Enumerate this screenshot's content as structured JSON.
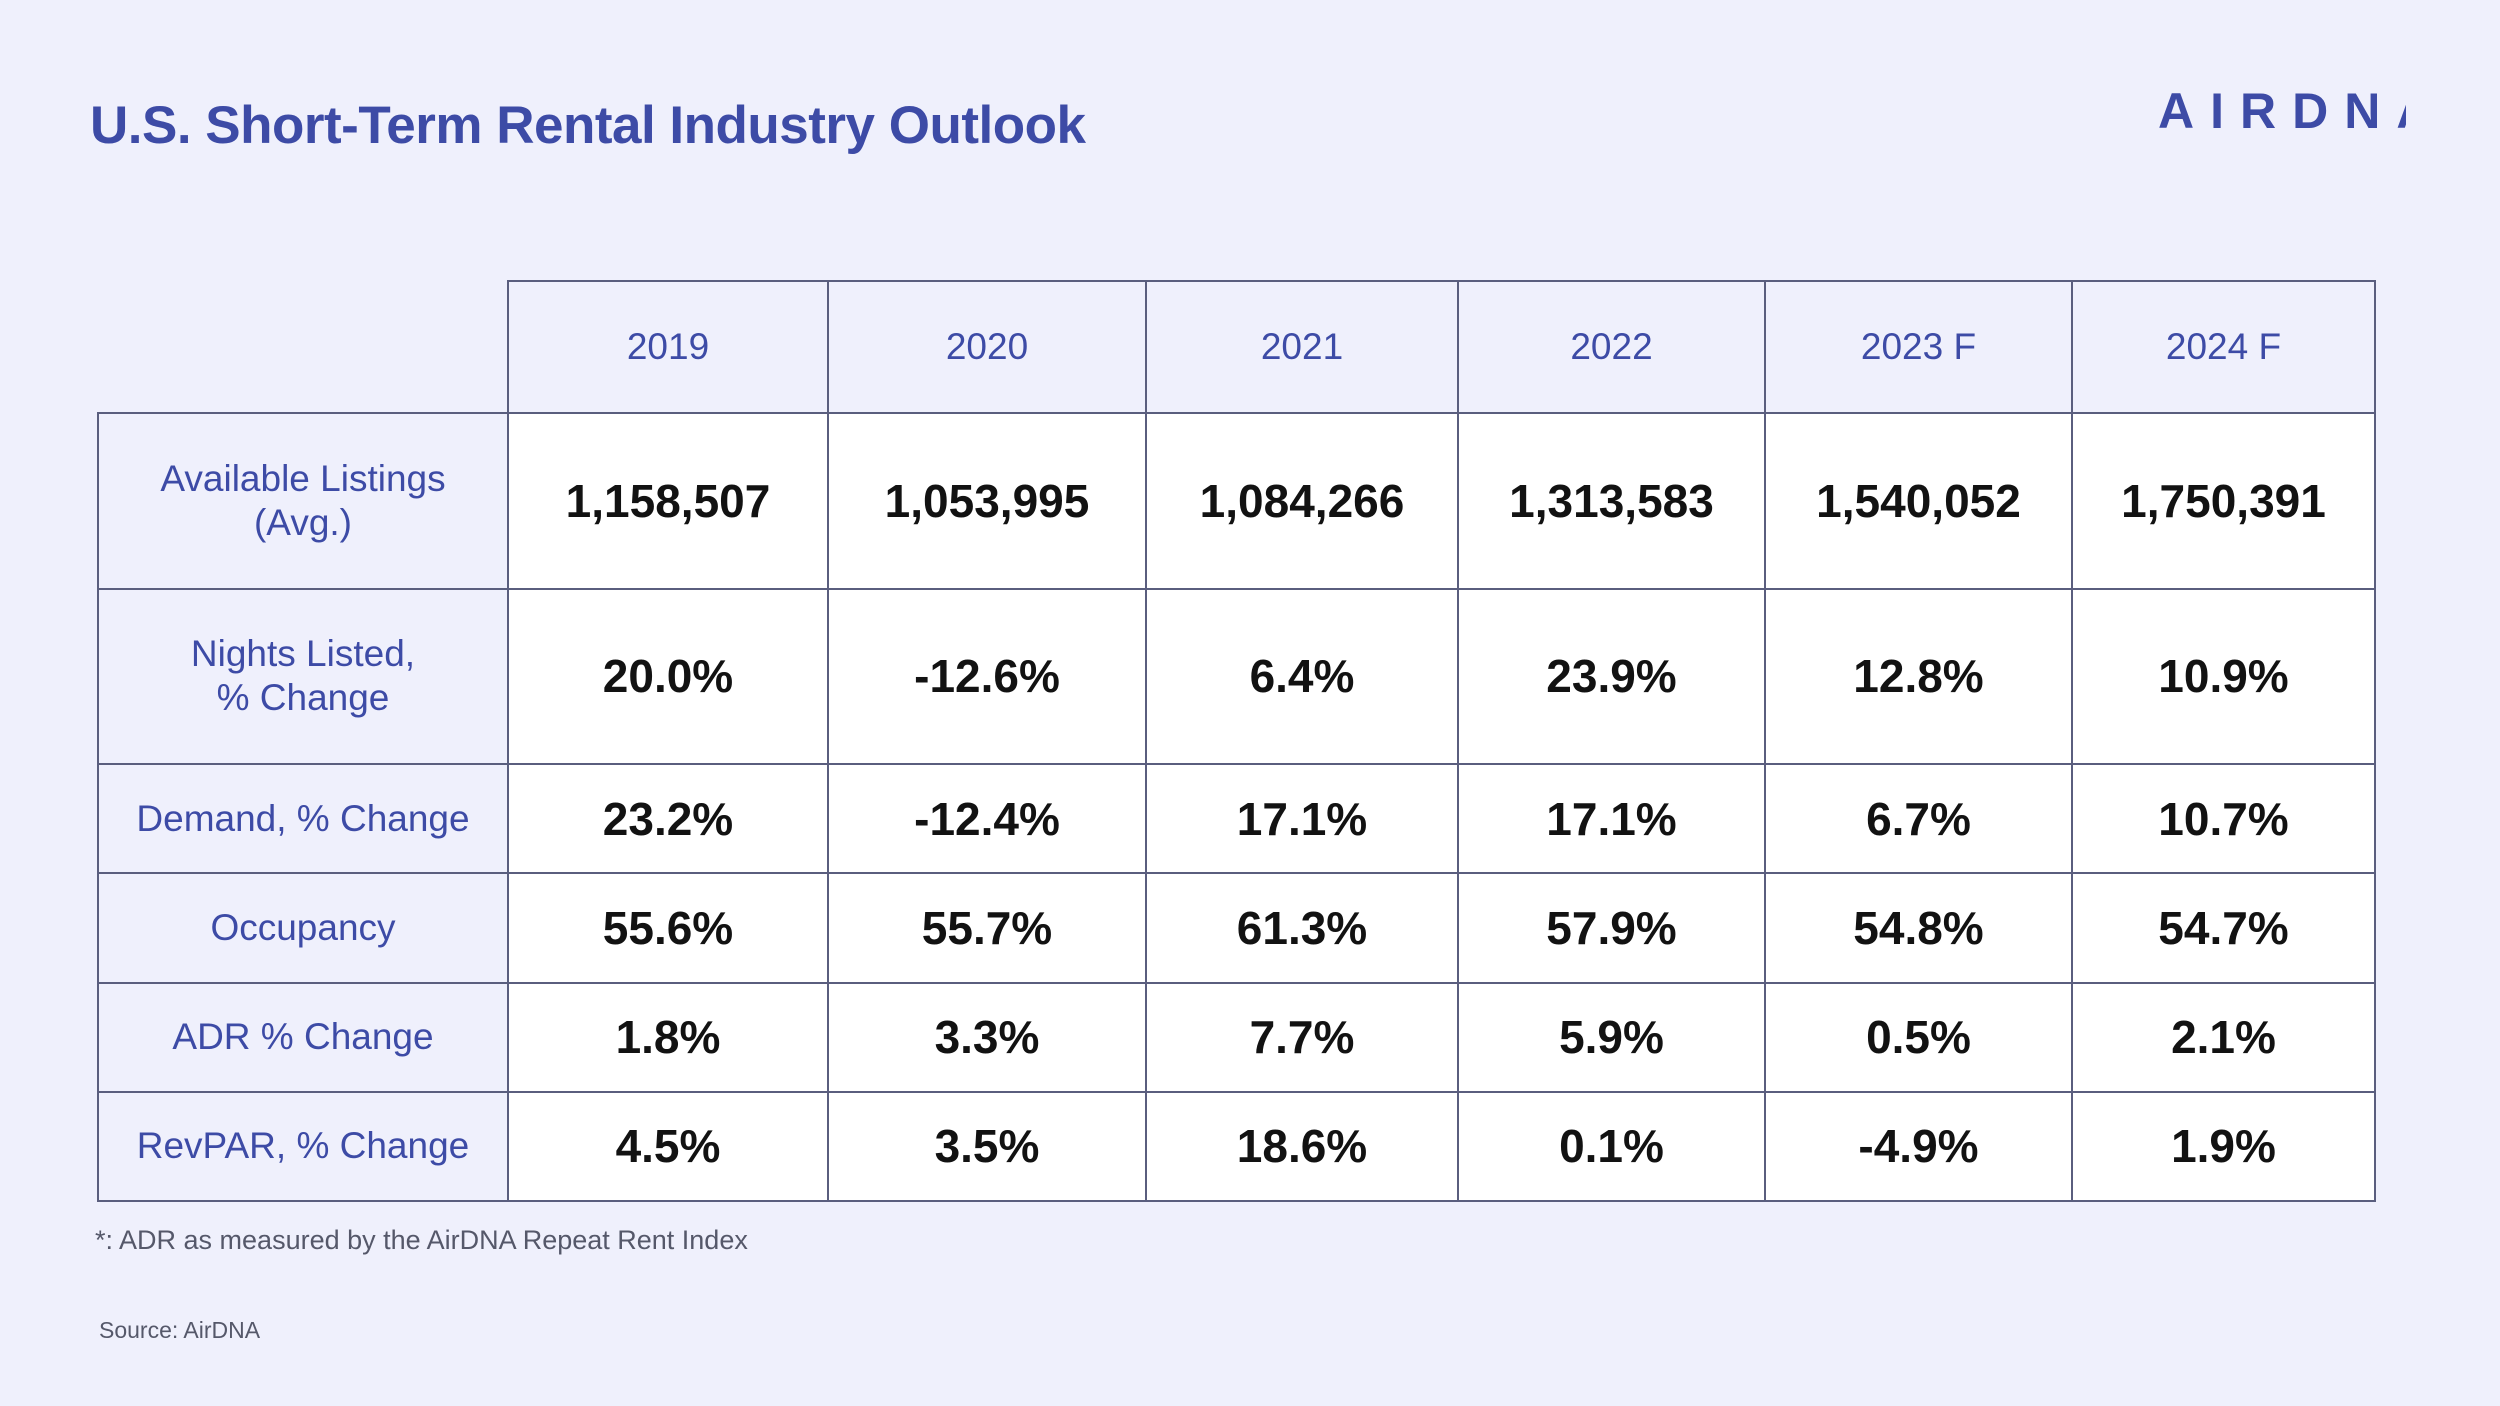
{
  "header": {
    "title": "U.S. Short-Term Rental Industry Outlook",
    "logo_text": "AIRDNA"
  },
  "colors": {
    "background": "#eff0fc",
    "accent": "#3d4ba6",
    "cell_background": "#ffffff",
    "value_text": "#121212",
    "border": "#5a5e7e"
  },
  "chart_data": {
    "type": "table",
    "columns": [
      "2019",
      "2020",
      "2021",
      "2022",
      "2023 F",
      "2024 F"
    ],
    "rows": [
      {
        "label": "Available Listings (Avg.)",
        "values": [
          "1,158,507",
          "1,053,995",
          "1,084,266",
          "1,313,583",
          "1,540,052",
          "1,750,391"
        ]
      },
      {
        "label": "Nights Listed, % Change",
        "values": [
          "20.0%",
          "-12.6%",
          "6.4%",
          "23.9%",
          "12.8%",
          "10.9%"
        ]
      },
      {
        "label": "Demand, % Change",
        "values": [
          "23.2%",
          "-12.4%",
          "17.1%",
          "17.1%",
          "6.7%",
          "10.7%"
        ]
      },
      {
        "label": "Occupancy",
        "values": [
          "55.6%",
          "55.7%",
          "61.3%",
          "57.9%",
          "54.8%",
          "54.7%"
        ]
      },
      {
        "label": "ADR % Change",
        "values": [
          "1.8%",
          "3.3%",
          "7.7%",
          "5.9%",
          "0.5%",
          "2.1%"
        ]
      },
      {
        "label": "RevPAR, % Change",
        "values": [
          "4.5%",
          "3.5%",
          "18.6%",
          "0.1%",
          "-4.9%",
          "1.9%"
        ]
      }
    ]
  },
  "footer": {
    "footnote": "*: ADR as measured by the AirDNA Repeat Rent Index",
    "source": "Source: AirDNA"
  }
}
